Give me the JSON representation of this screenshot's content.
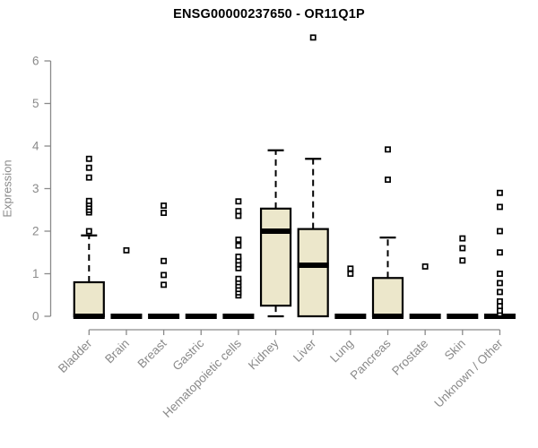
{
  "chart_data": {
    "type": "box",
    "title": "ENSG00000237650 - OR11Q1P",
    "ylabel": "Expression",
    "xlabel": "",
    "ylim": [
      0,
      6
    ],
    "yticks": [
      0,
      1,
      2,
      3,
      4,
      5,
      6
    ],
    "grid": false,
    "legend": null,
    "categories": [
      "Bladder",
      "Brain",
      "Breast",
      "Gastric",
      "Hematopoietic cells",
      "Kidney",
      "Liver",
      "Lung",
      "Pancreas",
      "Prostate",
      "Skin",
      "Unknown / Other"
    ],
    "series": [
      {
        "category": "Bladder",
        "q1": 0,
        "median": 0,
        "q3": 0.8,
        "whisker_low": null,
        "whisker_high": 1.9,
        "outliers": [
          2.0,
          2.44,
          2.5,
          2.57,
          2.64,
          2.71,
          3.26,
          3.49,
          3.7
        ]
      },
      {
        "category": "Brain",
        "q1": 0,
        "median": 0,
        "q3": 0,
        "whisker_low": null,
        "whisker_high": null,
        "outliers": [
          1.55
        ]
      },
      {
        "category": "Breast",
        "q1": 0,
        "median": 0,
        "q3": 0,
        "whisker_low": null,
        "whisker_high": null,
        "outliers": [
          0.74,
          0.97,
          1.3,
          2.43,
          2.6
        ]
      },
      {
        "category": "Gastric",
        "q1": 0,
        "median": 0,
        "q3": 0,
        "whisker_low": null,
        "whisker_high": null,
        "outliers": []
      },
      {
        "category": "Hematopoietic cells",
        "q1": 0,
        "median": 0,
        "q3": 0,
        "whisker_low": null,
        "whisker_high": null,
        "outliers": [
          0.49,
          0.56,
          0.64,
          0.72,
          0.8,
          0.88,
          1.13,
          1.22,
          1.31,
          1.4,
          1.66,
          1.8,
          2.36,
          2.47,
          2.7
        ]
      },
      {
        "category": "Kidney",
        "q1": 0.25,
        "median": 2.0,
        "q3": 2.53,
        "whisker_low": 0,
        "whisker_high": 3.9,
        "outliers": []
      },
      {
        "category": "Liver",
        "q1": 0,
        "median": 1.2,
        "q3": 2.05,
        "whisker_low": null,
        "whisker_high": 3.7,
        "outliers": [
          6.55
        ]
      },
      {
        "category": "Lung",
        "q1": 0,
        "median": 0,
        "q3": 0,
        "whisker_low": null,
        "whisker_high": null,
        "outliers": [
          1.0,
          1.12
        ]
      },
      {
        "category": "Pancreas",
        "q1": 0,
        "median": 0,
        "q3": 0.9,
        "whisker_low": null,
        "whisker_high": 1.85,
        "outliers": [
          3.21,
          3.92
        ]
      },
      {
        "category": "Prostate",
        "q1": 0,
        "median": 0,
        "q3": 0,
        "whisker_low": null,
        "whisker_high": null,
        "outliers": [
          1.17
        ]
      },
      {
        "category": "Skin",
        "q1": 0,
        "median": 0,
        "q3": 0,
        "whisker_low": null,
        "whisker_high": null,
        "outliers": [
          1.31,
          1.6,
          1.83
        ]
      },
      {
        "category": "Unknown / Other",
        "q1": 0,
        "median": 0,
        "q3": 0,
        "whisker_low": null,
        "whisker_high": null,
        "outliers": [
          0.06,
          0.13,
          0.24,
          0.35,
          0.57,
          0.78,
          1.0,
          1.5,
          2.0,
          2.57,
          2.9
        ]
      }
    ],
    "colors": {
      "box_fill": "#ECE7CB",
      "box_stroke": "#000000",
      "median": "#000000",
      "axis": "#8a8a8a",
      "tick_label": "#8a8a8a",
      "title": "#000000",
      "outlier_fill": "#FFFFFF",
      "outlier_stroke": "#000000"
    }
  }
}
